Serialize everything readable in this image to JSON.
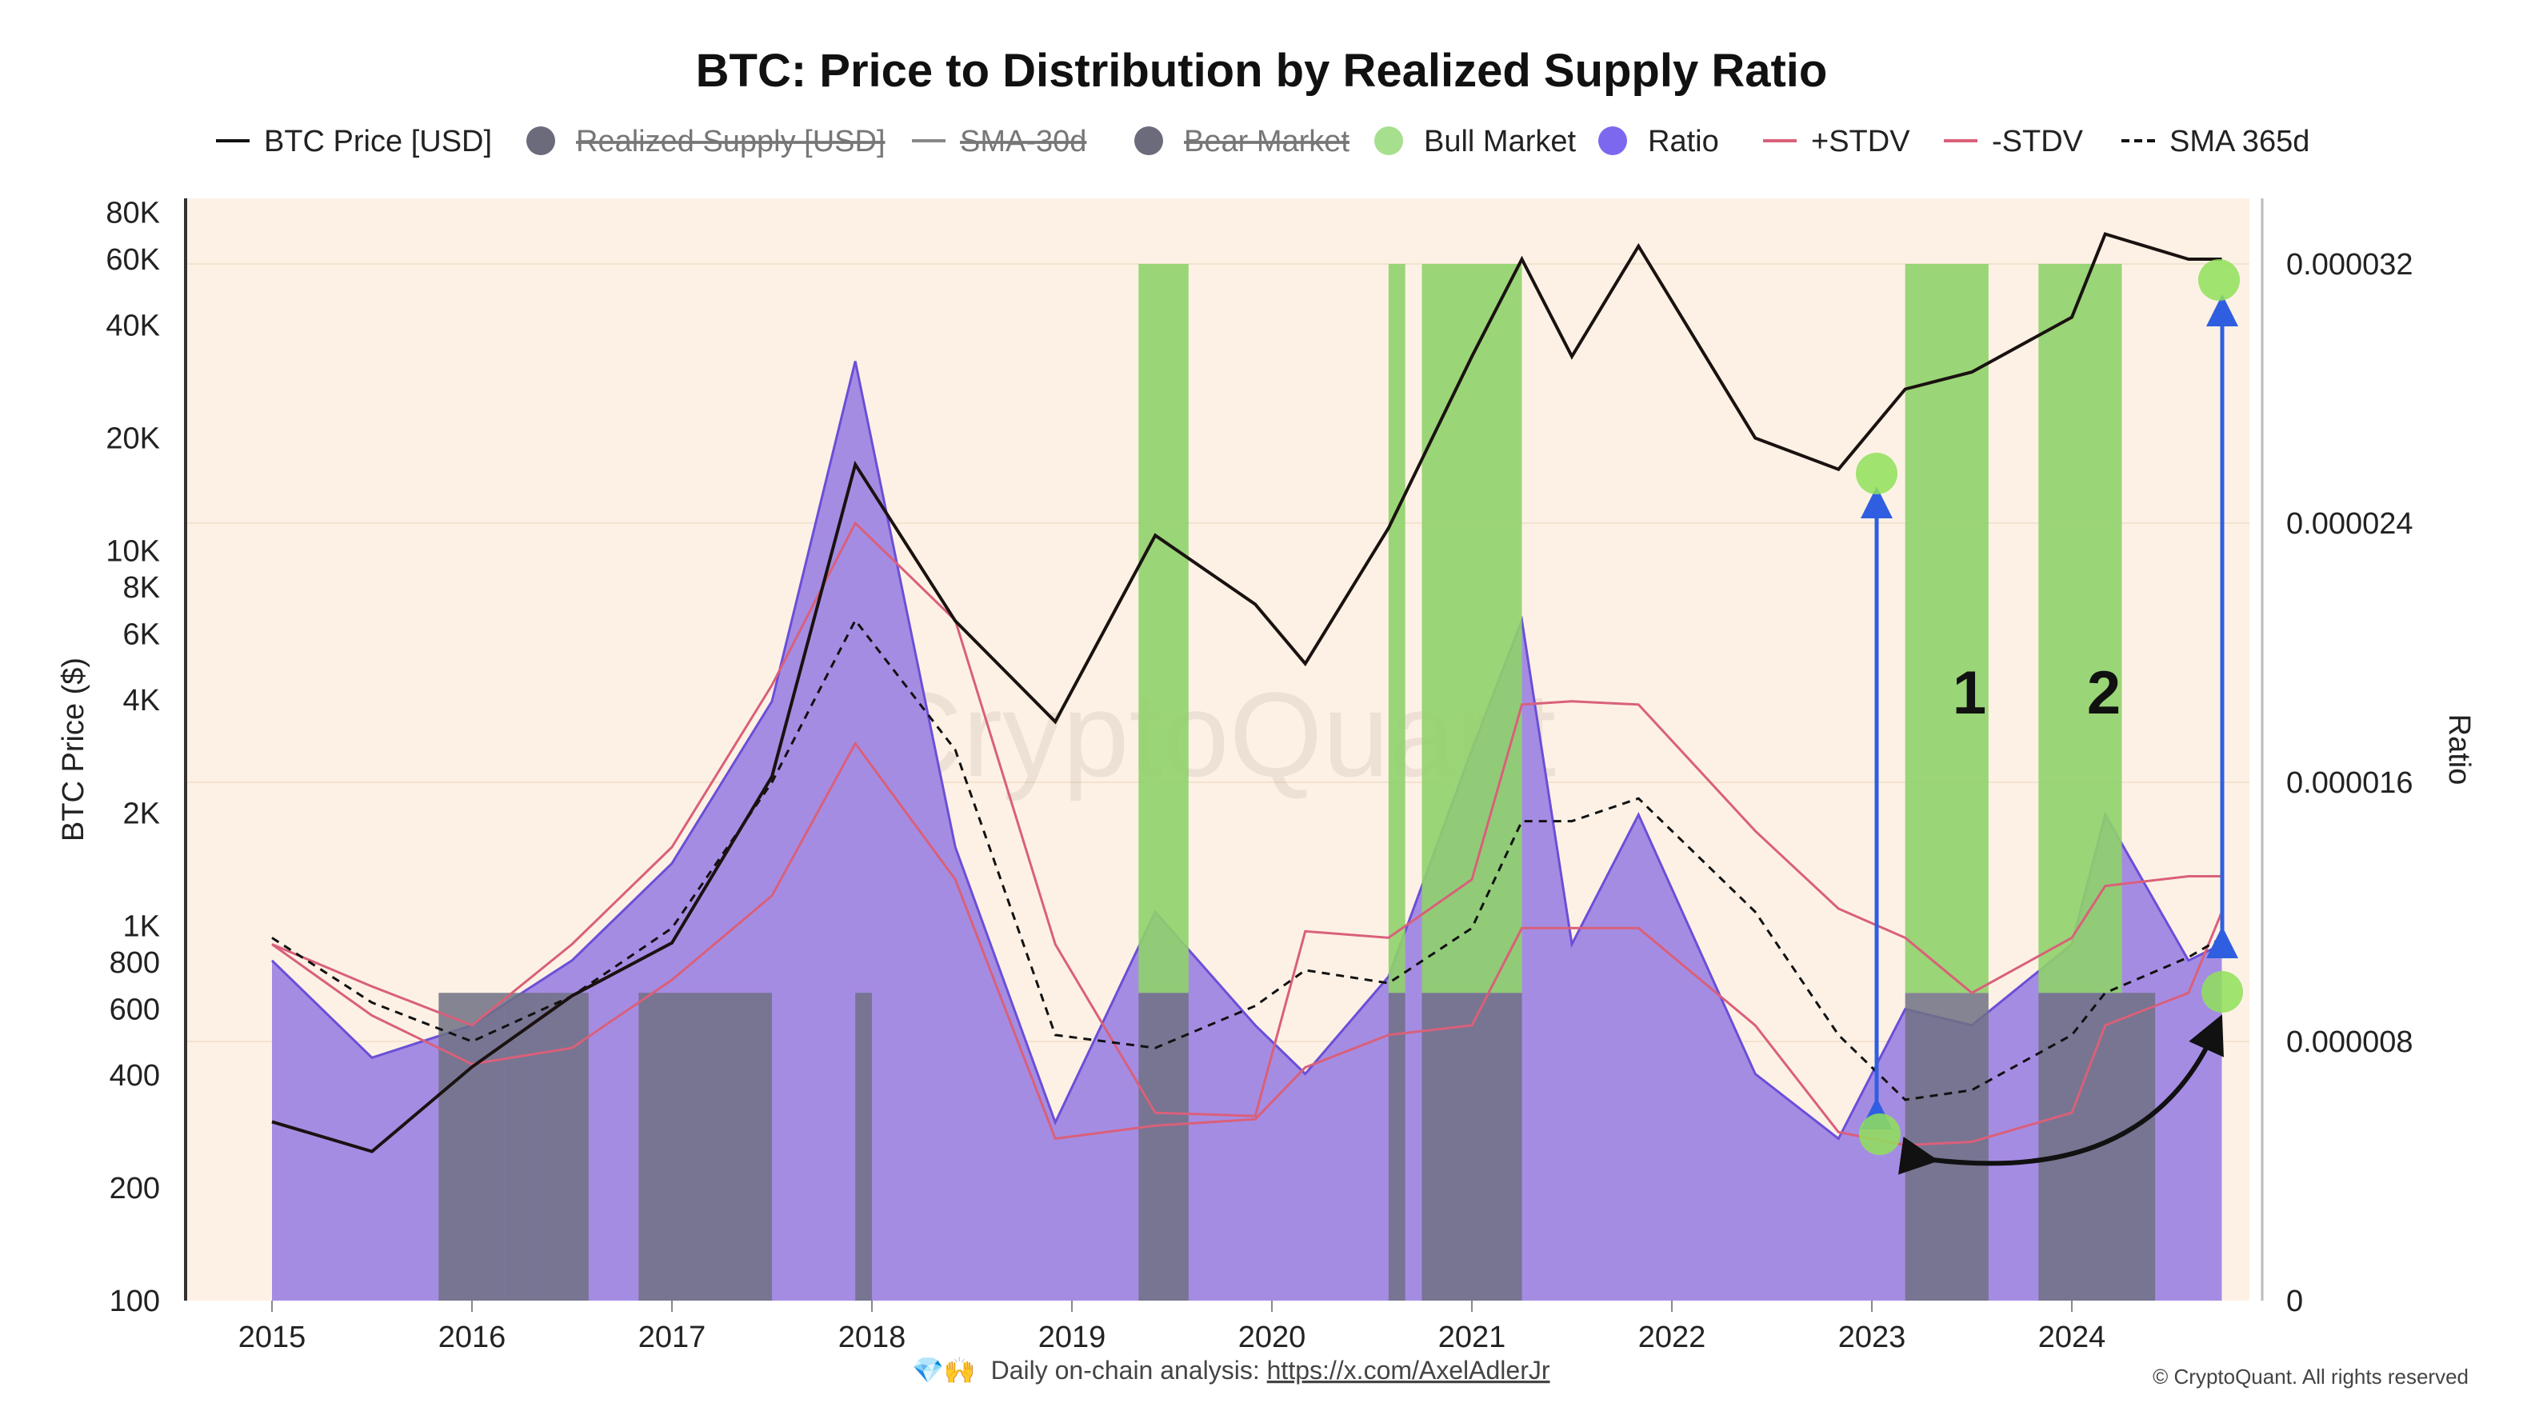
{
  "title": "BTC: Price to Distribution by Realized Supply Ratio",
  "legend": [
    {
      "label": "BTC Price [USD]",
      "kind": "line",
      "color": "#111111",
      "hidden": false
    },
    {
      "label": "Realized Supply [USD]",
      "kind": "dot",
      "color": "#6b6b7b",
      "hidden": true
    },
    {
      "label": "SMA-30d",
      "kind": "line",
      "color": "#888888",
      "hidden": true
    },
    {
      "label": "Bear Market",
      "kind": "dot",
      "color": "#6b6b7b",
      "hidden": true
    },
    {
      "label": "Bull Market",
      "kind": "dot",
      "color": "#a6e08f",
      "hidden": false
    },
    {
      "label": "Ratio",
      "kind": "dot",
      "color": "#7b68ee",
      "hidden": false
    },
    {
      "label": "+STDV",
      "kind": "line",
      "color": "#d9607a",
      "hidden": false
    },
    {
      "label": "-STDV",
      "kind": "line",
      "color": "#d9607a",
      "hidden": false
    },
    {
      "label": "SMA 365d",
      "kind": "dashed",
      "color": "#111111",
      "hidden": false
    }
  ],
  "axes": {
    "left_title": "BTC Price ($)",
    "right_title": "Ratio",
    "left_ticks": [
      "80K",
      "60K",
      "40K",
      "20K",
      "10K",
      "8K",
      "6K",
      "4K",
      "2K",
      "1K",
      "800",
      "600",
      "400",
      "200",
      "100"
    ],
    "right_ticks": [
      "0.000032",
      "0.000024",
      "0.000016",
      "0.000008",
      "0"
    ],
    "x_ticks": [
      "2015",
      "2016",
      "2017",
      "2018",
      "2019",
      "2020",
      "2021",
      "2022",
      "2023",
      "2024"
    ]
  },
  "annotations": {
    "label_1": "1",
    "label_2": "2"
  },
  "watermark": "CryptoQuant",
  "footer": {
    "icons": "💎🙌",
    "text": "Daily on-chain analysis: ",
    "link": "https://x.com/AxelAdlerJr",
    "copyright": "© CryptoQuant. All rights reserved"
  },
  "colors": {
    "plot_bg": "#fdf1e5",
    "ratio_fill": "#a58ce3",
    "ratio_line": "#6a4fd8",
    "bear_band": "#6e7184",
    "bull_band": "#8fd16a",
    "stdv": "#d9607a",
    "price": "#1a1210",
    "arrow_blue": "#2f5fe0",
    "marker_green": "#8fe05a"
  },
  "chart_data": {
    "type": "line",
    "x": [
      "2015-01",
      "2015-07",
      "2016-01",
      "2016-07",
      "2017-01",
      "2017-07",
      "2017-12",
      "2018-06",
      "2018-12",
      "2019-06",
      "2019-12",
      "2020-03",
      "2020-08",
      "2021-01",
      "2021-04",
      "2021-07",
      "2021-11",
      "2022-06",
      "2022-11",
      "2023-03",
      "2023-07",
      "2024-01",
      "2024-03",
      "2024-08",
      "2024-10"
    ],
    "series": [
      {
        "name": "BTC Price [USD]",
        "axis": "left",
        "values": [
          300,
          250,
          420,
          650,
          900,
          2500,
          17000,
          6500,
          3500,
          11000,
          7200,
          5000,
          11500,
          33000,
          60000,
          33000,
          65000,
          20000,
          16500,
          27000,
          30000,
          42000,
          70000,
          60000,
          60000
        ]
      },
      {
        "name": "Ratio",
        "axis": "right",
        "values": [
          1.05e-05,
          7.5e-06,
          8.5e-06,
          1.05e-05,
          1.35e-05,
          1.85e-05,
          2.9e-05,
          1.4e-05,
          5.5e-06,
          1.2e-05,
          8.5e-06,
          7e-06,
          1e-05,
          1.7e-05,
          2.1e-05,
          1.1e-05,
          1.5e-05,
          7e-06,
          5e-06,
          9e-06,
          8.5e-06,
          1.1e-05,
          1.5e-05,
          1.05e-05,
          1.1e-05
        ]
      },
      {
        "name": "+STDV",
        "axis": "right",
        "values": [
          1.1e-05,
          9.7e-06,
          8.5e-06,
          1.1e-05,
          1.4e-05,
          1.9e-05,
          2.4e-05,
          2.1e-05,
          1.1e-05,
          5.8e-06,
          5.7e-06,
          1.14e-05,
          1.12e-05,
          1.3e-05,
          1.84e-05,
          1.85e-05,
          1.84e-05,
          1.45e-05,
          1.21e-05,
          1.12e-05,
          9.5e-06,
          1.12e-05,
          1.28e-05,
          1.31e-05,
          1.31e-05
        ]
      },
      {
        "name": "-STDV",
        "axis": "right",
        "values": [
          1.1e-05,
          8.8e-06,
          7.3e-06,
          7.8e-06,
          9.9e-06,
          1.25e-05,
          1.72e-05,
          1.3e-05,
          5e-06,
          5.4e-06,
          5.6e-06,
          7.2e-06,
          8.2e-06,
          8.5e-06,
          1.15e-05,
          1.15e-05,
          1.15e-05,
          8.5e-06,
          5.2e-06,
          4.8e-06,
          4.9e-06,
          5.8e-06,
          8.5e-06,
          9.5e-06,
          1.2e-05
        ]
      },
      {
        "name": "SMA 365d",
        "axis": "right",
        "values": [
          1.12e-05,
          9.2e-06,
          8e-06,
          9.4e-06,
          1.15e-05,
          1.6e-05,
          2.1e-05,
          1.7e-05,
          8.2e-06,
          7.8e-06,
          9.1e-06,
          1.02e-05,
          9.8e-06,
          1.15e-05,
          1.48e-05,
          1.48e-05,
          1.55e-05,
          1.2e-05,
          8.2e-06,
          6.2e-06,
          6.5e-06,
          8.2e-06,
          9.5e-06,
          1.06e-05,
          1.12e-05
        ]
      }
    ],
    "bull_periods": [
      [
        "2019-05",
        "2019-08"
      ],
      [
        "2020-08",
        "2020-09"
      ],
      [
        "2020-10",
        "2021-04"
      ],
      [
        "2023-03",
        "2023-08"
      ],
      [
        "2023-11",
        "2024-04"
      ]
    ],
    "bear_periods": [
      [
        "2015-11",
        "2016-03"
      ],
      [
        "2016-03",
        "2016-04"
      ],
      [
        "2016-04",
        "2016-05"
      ],
      [
        "2016-05",
        "2016-08"
      ],
      [
        "2016-11",
        "2017-07"
      ],
      [
        "2017-12",
        "2018-01"
      ],
      [
        "2019-05",
        "2019-08"
      ],
      [
        "2020-08",
        "2020-09"
      ],
      [
        "2020-10",
        "2021-04"
      ],
      [
        "2023-03",
        "2023-08"
      ],
      [
        "2023-11",
        "2024-04"
      ],
      [
        "2024-04",
        "2024-06"
      ]
    ],
    "left_axis": {
      "scale": "log",
      "range": [
        100,
        100000
      ]
    },
    "right_axis": {
      "range": [
        0,
        3.2e-05
      ]
    },
    "grid": true,
    "legend_position": "top"
  }
}
